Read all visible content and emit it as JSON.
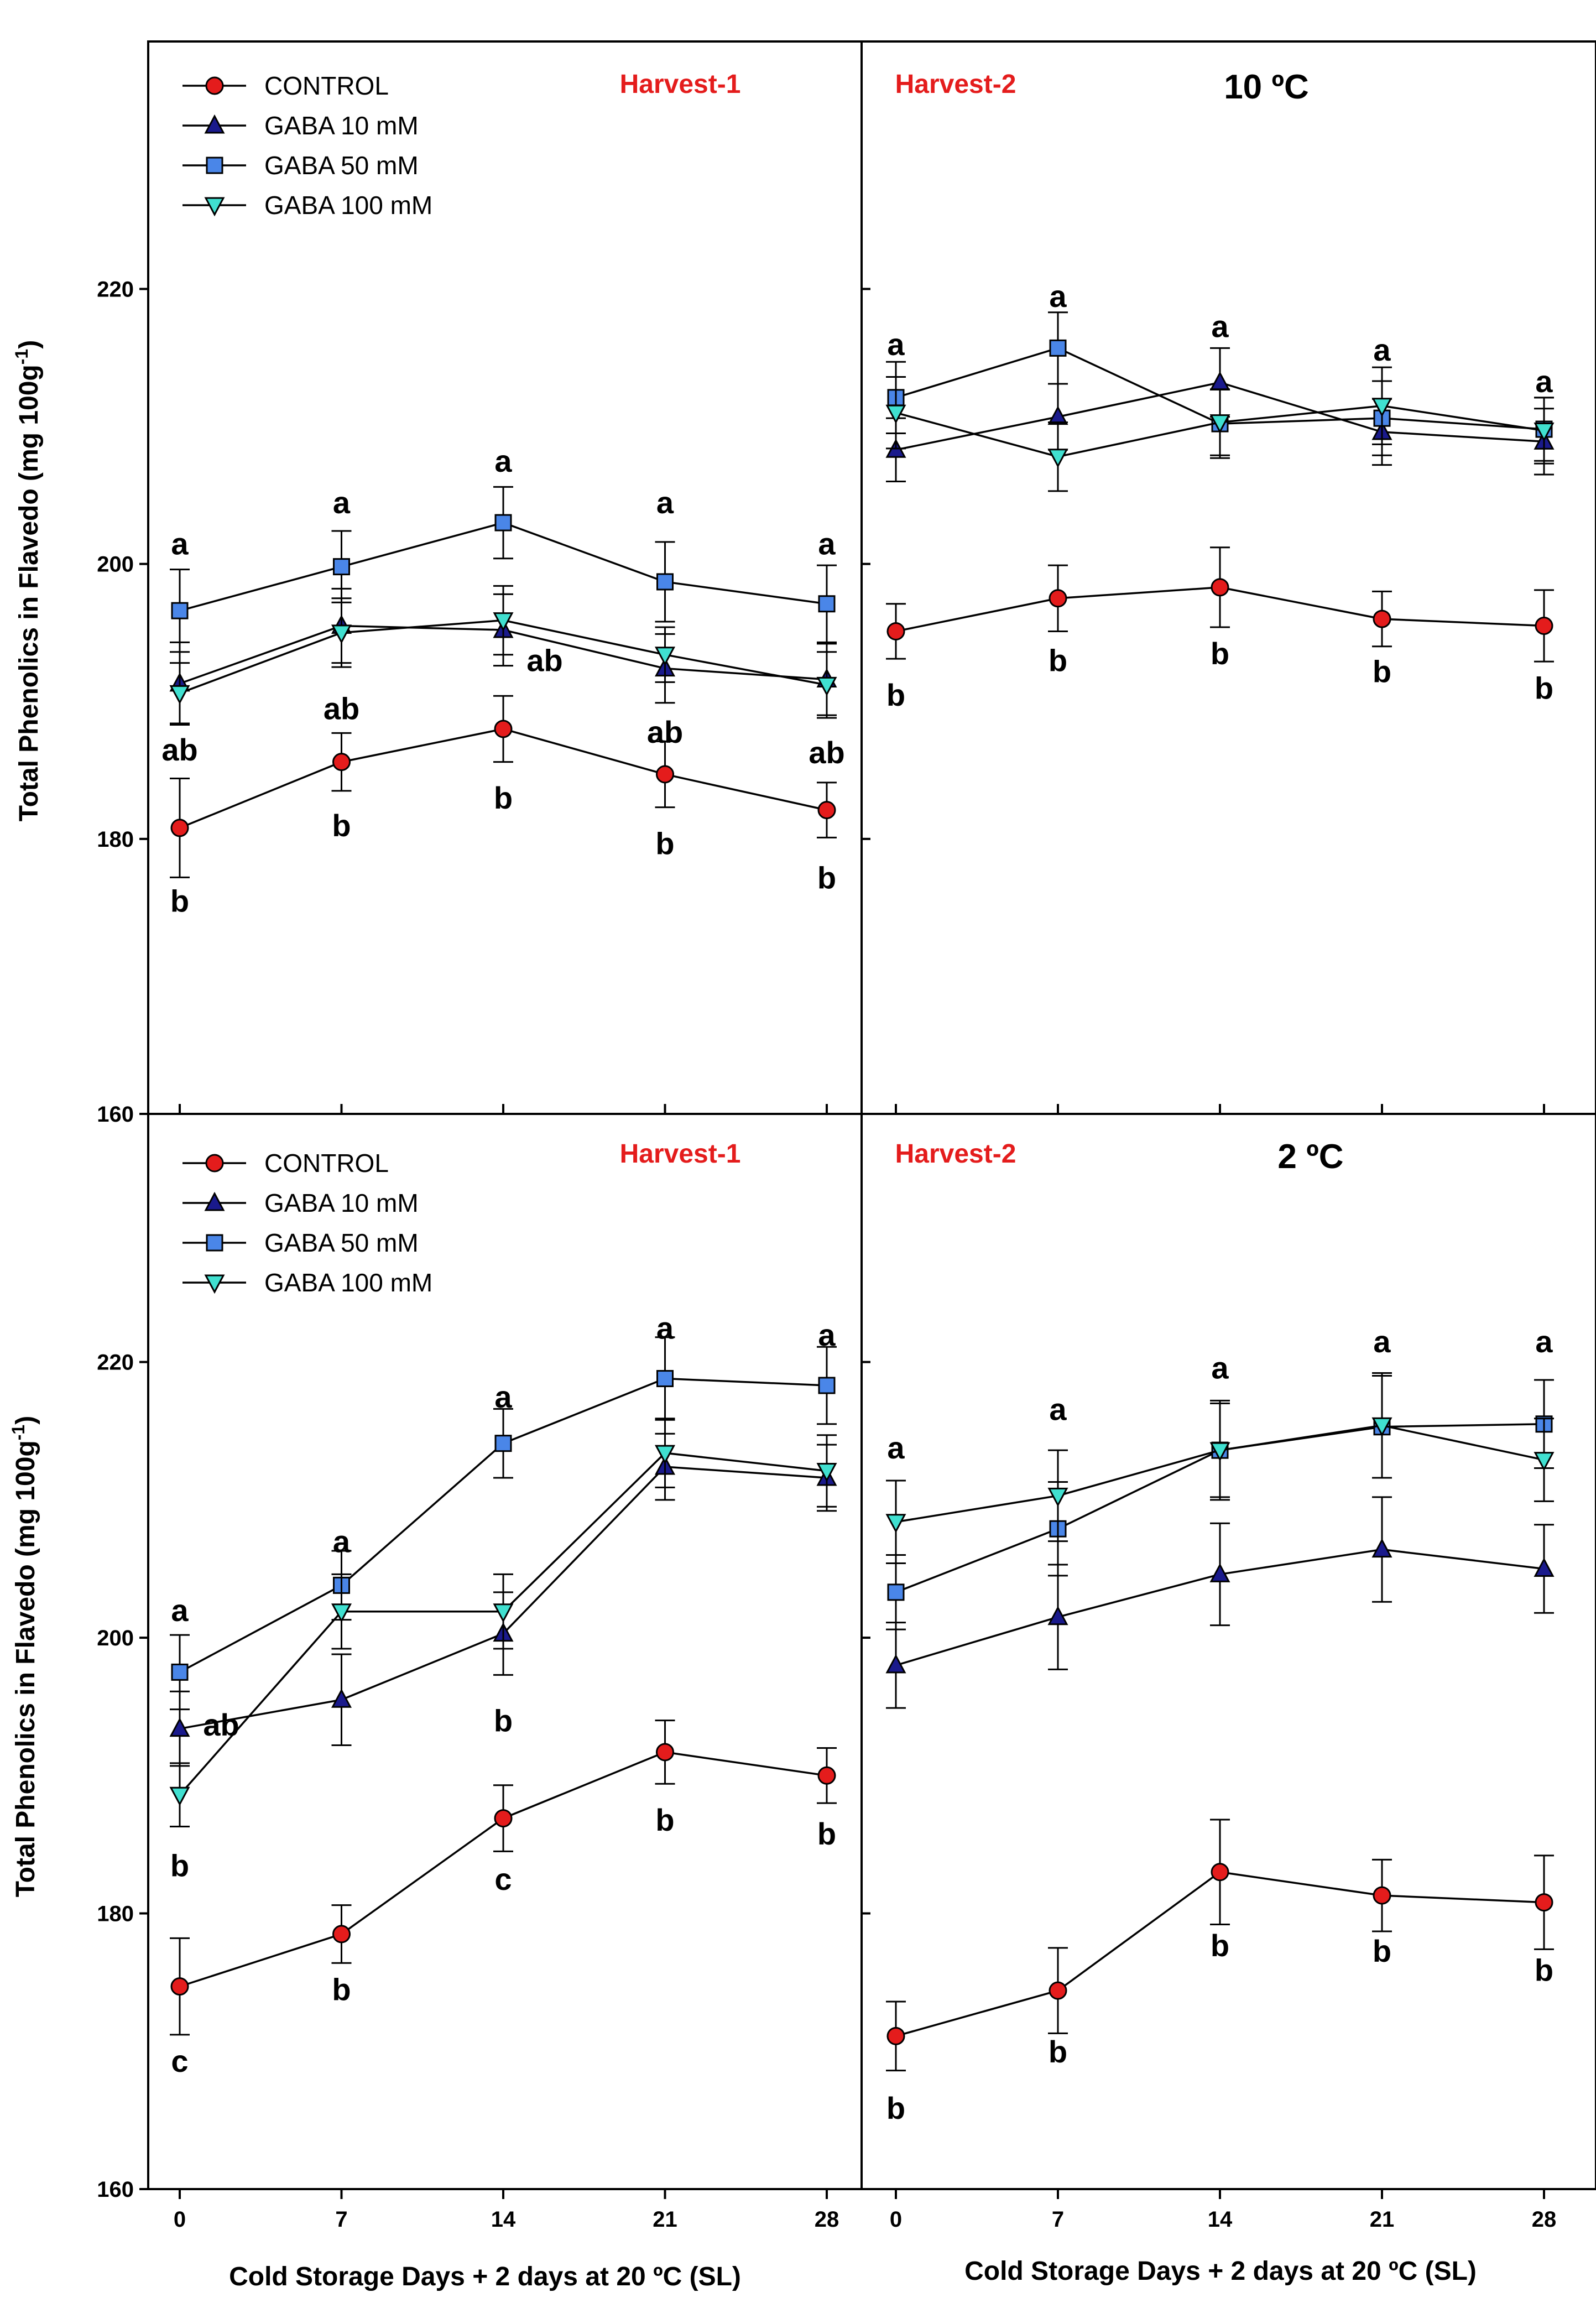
{
  "chart_data": {
    "type": "line",
    "ylabel": "Total Phenolics in Flavedo (mg 100g",
    "ylabel_sup": "-1",
    "ylabel_close": ")",
    "xlabel": "Cold Storage Days + 2 days at 20 ºC (SL)",
    "x": [
      0,
      7,
      14,
      21,
      28
    ],
    "x_tick_labels": [
      "0",
      "7",
      "14",
      "21",
      "28"
    ],
    "ylim": [
      160,
      238
    ],
    "y_ticks": [
      160,
      180,
      200,
      220
    ],
    "y_tick_labels": [
      "160",
      "180",
      "200",
      "220"
    ],
    "legend": [
      {
        "key": "control",
        "label": "CONTROL",
        "marker": "circle",
        "color": "#e41c1c"
      },
      {
        "key": "gaba10",
        "label": "GABA 10 mM",
        "marker": "triangle-up",
        "color": "#1a1a8c"
      },
      {
        "key": "gaba50",
        "label": "GABA 50 mM",
        "marker": "square",
        "color": "#4a86e8"
      },
      {
        "key": "gaba100",
        "label": "GABA 100 mM",
        "marker": "triangle-down",
        "color": "#40e0d0"
      }
    ],
    "panels": [
      {
        "id": "top-left",
        "harvest_label": "Harvest-1",
        "temperature_label": "",
        "series": [
          {
            "key": "control",
            "name": "CONTROL",
            "values": [
              180.8,
              185.6,
              188.0,
              184.7,
              182.1
            ],
            "errors": [
              3.6,
              2.1,
              2.4,
              2.4,
              2.0
            ]
          },
          {
            "key": "gaba10",
            "name": "GABA 10 mM",
            "values": [
              191.3,
              195.5,
              195.2,
              192.4,
              191.6
            ],
            "errors": [
              3.0,
              2.7,
              2.6,
              2.5,
              2.6
            ]
          },
          {
            "key": "gaba50",
            "name": "GABA 50 mM",
            "values": [
              196.6,
              199.8,
              203.0,
              198.7,
              197.1
            ],
            "errors": [
              3.0,
              2.6,
              2.6,
              2.9,
              2.8
            ]
          },
          {
            "key": "gaba100",
            "name": "GABA 100 mM",
            "values": [
              190.6,
              195.0,
              195.9,
              193.4,
              191.2
            ],
            "errors": [
              2.2,
              2.5,
              2.5,
              2.0,
              2.4
            ]
          }
        ],
        "letters": [
          {
            "day": 0,
            "value": 201.5,
            "text": "a"
          },
          {
            "day": 0,
            "value": 186.5,
            "text": "ab"
          },
          {
            "day": 0,
            "value": 175.5,
            "text": "b"
          },
          {
            "day": 7,
            "value": 204.5,
            "text": "a"
          },
          {
            "day": 7,
            "value": 189.5,
            "text": "ab"
          },
          {
            "day": 7,
            "value": 181.0,
            "text": "b"
          },
          {
            "day": 14,
            "value": 207.5,
            "text": "a"
          },
          {
            "day": 14,
            "value": 193.0,
            "text": "ab",
            "offset": "right"
          },
          {
            "day": 14,
            "value": 183.0,
            "text": "b"
          },
          {
            "day": 21,
            "value": 204.5,
            "text": "a"
          },
          {
            "day": 21,
            "value": 187.8,
            "text": "ab"
          },
          {
            "day": 21,
            "value": 179.7,
            "text": "b"
          },
          {
            "day": 28,
            "value": 201.5,
            "text": "a"
          },
          {
            "day": 28,
            "value": 186.3,
            "text": "ab"
          },
          {
            "day": 28,
            "value": 177.2,
            "text": "b"
          }
        ]
      },
      {
        "id": "top-right",
        "harvest_label": "Harvest-2",
        "temperature_label": "10 ºC",
        "series": [
          {
            "key": "control",
            "name": "CONTROL",
            "values": [
              195.1,
              197.5,
              198.3,
              196.0,
              195.5
            ],
            "errors": [
              2.0,
              2.4,
              2.9,
              2.0,
              2.6
            ]
          },
          {
            "key": "gaba10",
            "name": "GABA 10 mM",
            "values": [
              208.3,
              210.7,
              213.2,
              209.6,
              208.9
            ],
            "errors": [
              2.3,
              2.4,
              2.5,
              2.4,
              2.4
            ]
          },
          {
            "key": "gaba50",
            "name": "GABA 50 mM",
            "values": [
              212.1,
              215.7,
              210.2,
              210.6,
              209.8
            ],
            "errors": [
              2.6,
              2.6,
              2.5,
              2.7,
              2.3
            ]
          },
          {
            "key": "gaba100",
            "name": "GABA 100 mM",
            "values": [
              211.0,
              207.8,
              210.3,
              211.5,
              209.7
            ],
            "errors": [
              2.6,
              2.5,
              2.4,
              2.8,
              2.4
            ]
          }
        ],
        "letters": [
          {
            "day": 0,
            "value": 216.0,
            "text": "a"
          },
          {
            "day": 0,
            "value": 190.5,
            "text": "b"
          },
          {
            "day": 7,
            "value": 219.5,
            "text": "a"
          },
          {
            "day": 7,
            "value": 193.0,
            "text": "b"
          },
          {
            "day": 14,
            "value": 217.3,
            "text": "a"
          },
          {
            "day": 14,
            "value": 193.5,
            "text": "b"
          },
          {
            "day": 21,
            "value": 215.6,
            "text": "a"
          },
          {
            "day": 21,
            "value": 192.2,
            "text": "b"
          },
          {
            "day": 28,
            "value": 213.3,
            "text": "a"
          },
          {
            "day": 28,
            "value": 191.0,
            "text": "b"
          }
        ]
      },
      {
        "id": "bottom-left",
        "harvest_label": "Harvest-1",
        "temperature_label": "",
        "series": [
          {
            "key": "control",
            "name": "CONTROL",
            "values": [
              174.7,
              178.5,
              186.9,
              191.7,
              190.0
            ],
            "errors": [
              3.5,
              2.1,
              2.4,
              2.3,
              2.0
            ]
          },
          {
            "key": "gaba10",
            "name": "GABA 10 mM",
            "values": [
              193.4,
              195.5,
              200.3,
              212.4,
              211.6
            ],
            "errors": [
              2.7,
              3.3,
              3.0,
              2.4,
              2.4
            ]
          },
          {
            "key": "gaba50",
            "name": "GABA 50 mM",
            "values": [
              197.5,
              203.8,
              214.1,
              218.8,
              218.3
            ],
            "errors": [
              2.7,
              2.5,
              2.5,
              3.0,
              2.8
            ]
          },
          {
            "key": "gaba100",
            "name": "GABA 100 mM",
            "values": [
              188.6,
              201.9,
              201.9,
              213.4,
              212.1
            ],
            "errors": [
              2.3,
              2.7,
              2.7,
              2.5,
              2.6
            ]
          }
        ],
        "letters": [
          {
            "day": 0,
            "value": 202.0,
            "text": "a"
          },
          {
            "day": 0,
            "value": 193.7,
            "text": "ab",
            "offset": "right"
          },
          {
            "day": 0,
            "value": 183.5,
            "text": "b"
          },
          {
            "day": 0,
            "value": 169.3,
            "text": "c"
          },
          {
            "day": 7,
            "value": 207.0,
            "text": "a"
          },
          {
            "day": 7,
            "value": 174.5,
            "text": "b"
          },
          {
            "day": 14,
            "value": 217.5,
            "text": "a"
          },
          {
            "day": 14,
            "value": 194.0,
            "text": "b"
          },
          {
            "day": 14,
            "value": 182.5,
            "text": "c"
          },
          {
            "day": 21,
            "value": 222.5,
            "text": "a"
          },
          {
            "day": 21,
            "value": 186.8,
            "text": "b"
          },
          {
            "day": 28,
            "value": 222.0,
            "text": "a"
          },
          {
            "day": 28,
            "value": 185.8,
            "text": "b"
          }
        ]
      },
      {
        "id": "bottom-right",
        "harvest_label": "Harvest-2",
        "temperature_label": "2 ºC",
        "series": [
          {
            "key": "control",
            "name": "CONTROL",
            "values": [
              171.1,
              174.4,
              183.0,
              181.3,
              180.8
            ],
            "errors": [
              2.5,
              3.1,
              3.8,
              2.6,
              3.4
            ]
          },
          {
            "key": "gaba10",
            "name": "GABA 10 mM",
            "values": [
              198.0,
              201.5,
              204.6,
              206.4,
              205.0
            ],
            "errors": [
              3.1,
              3.8,
              3.7,
              3.8,
              3.2
            ]
          },
          {
            "key": "gaba50",
            "name": "GABA 50 mM",
            "values": [
              203.3,
              207.9,
              213.6,
              215.3,
              215.5
            ],
            "errors": [
              2.7,
              3.4,
              3.6,
              3.7,
              3.2
            ]
          },
          {
            "key": "gaba100",
            "name": "GABA 100 mM",
            "values": [
              208.4,
              210.3,
              213.6,
              215.4,
              212.9
            ],
            "errors": [
              3.0,
              3.3,
              3.4,
              3.8,
              3.0
            ]
          }
        ],
        "letters": [
          {
            "day": 0,
            "value": 213.8,
            "text": "a"
          },
          {
            "day": 0,
            "value": 165.9,
            "text": "b"
          },
          {
            "day": 7,
            "value": 216.6,
            "text": "a"
          },
          {
            "day": 7,
            "value": 170.0,
            "text": "b"
          },
          {
            "day": 14,
            "value": 219.6,
            "text": "a"
          },
          {
            "day": 14,
            "value": 177.7,
            "text": "b"
          },
          {
            "day": 21,
            "value": 221.5,
            "text": "a"
          },
          {
            "day": 21,
            "value": 177.3,
            "text": "b"
          },
          {
            "day": 28,
            "value": 221.5,
            "text": "a"
          },
          {
            "day": 28,
            "value": 175.9,
            "text": "b"
          }
        ]
      }
    ]
  }
}
